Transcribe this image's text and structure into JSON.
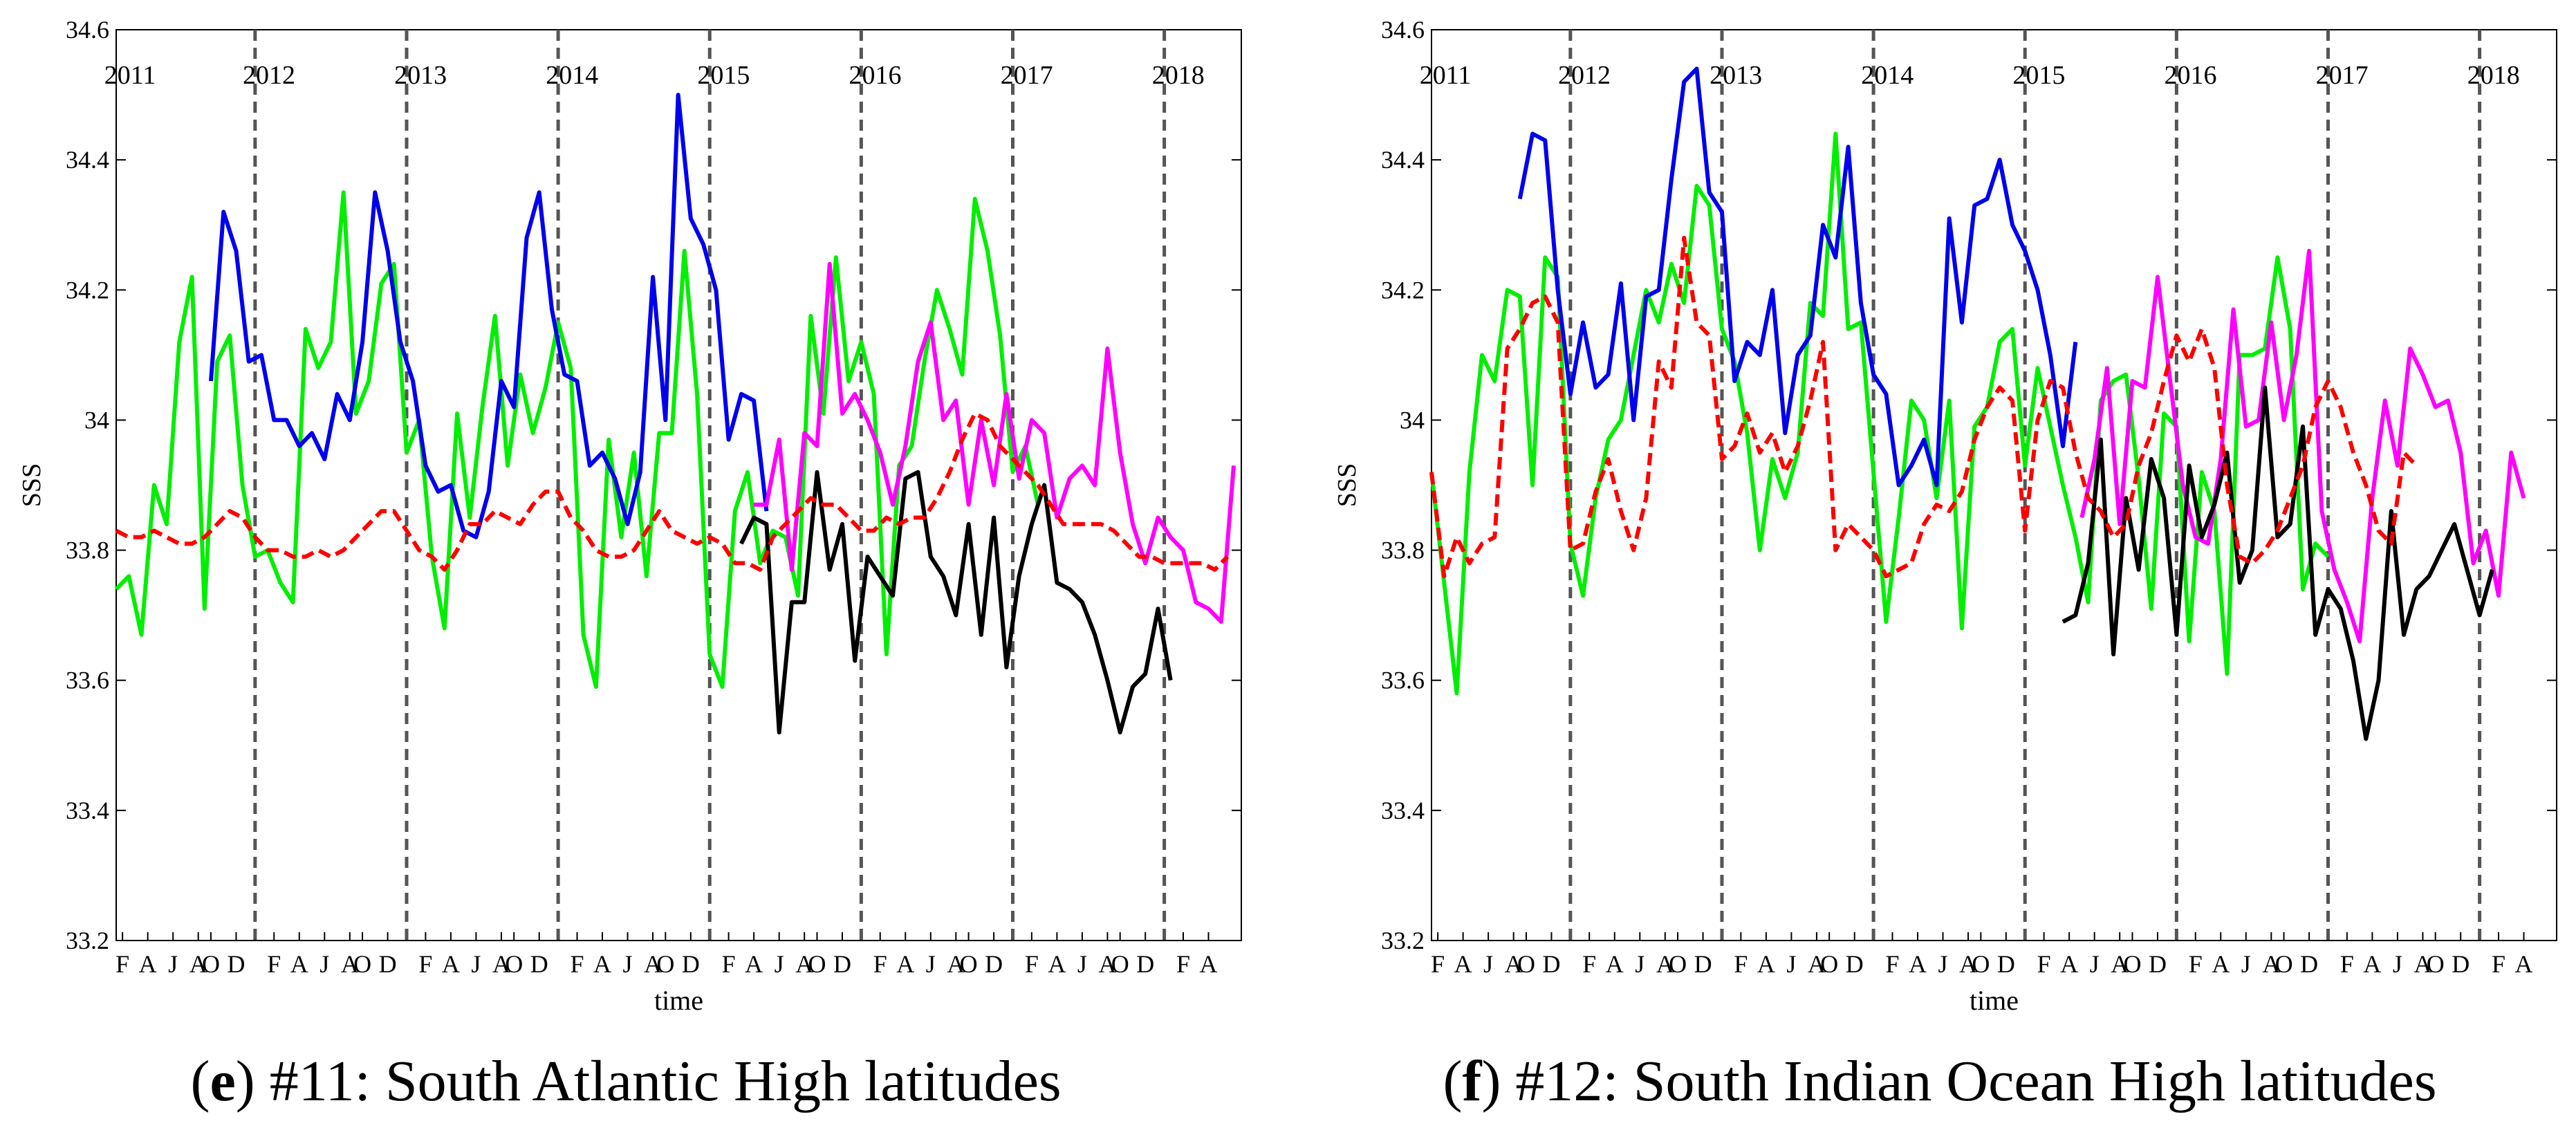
{
  "chart_data": [
    {
      "type": "line",
      "panel_letter": "e",
      "caption": "#11: South Atlantic High latitudes",
      "xlabel": "time",
      "ylabel": "SSS",
      "ylim": [
        33.2,
        34.6
      ],
      "yticks": [
        "33.2",
        "33.4",
        "33.6",
        "33.8",
        "34",
        "34.2",
        "34.4",
        "34.6"
      ],
      "xlim": [
        0.5,
        89.6
      ],
      "month_ticks": [
        {
          "m": 1,
          "label": "F"
        },
        {
          "m": 3,
          "label": "A"
        },
        {
          "m": 5,
          "label": "J"
        },
        {
          "m": 7,
          "label": "A"
        },
        {
          "m": 8,
          "label": "O"
        },
        {
          "m": 10,
          "label": "D"
        },
        {
          "m": 13,
          "label": "F"
        },
        {
          "m": 15,
          "label": "A"
        },
        {
          "m": 17,
          "label": "J"
        },
        {
          "m": 19,
          "label": "A"
        },
        {
          "m": 20,
          "label": "O"
        },
        {
          "m": 22,
          "label": "D"
        },
        {
          "m": 25,
          "label": "F"
        },
        {
          "m": 27,
          "label": "A"
        },
        {
          "m": 29,
          "label": "J"
        },
        {
          "m": 31,
          "label": "A"
        },
        {
          "m": 32,
          "label": "O"
        },
        {
          "m": 34,
          "label": "D"
        },
        {
          "m": 37,
          "label": "F"
        },
        {
          "m": 39,
          "label": "A"
        },
        {
          "m": 41,
          "label": "J"
        },
        {
          "m": 43,
          "label": "A"
        },
        {
          "m": 44,
          "label": "O"
        },
        {
          "m": 46,
          "label": "D"
        },
        {
          "m": 49,
          "label": "F"
        },
        {
          "m": 51,
          "label": "A"
        },
        {
          "m": 53,
          "label": "J"
        },
        {
          "m": 55,
          "label": "A"
        },
        {
          "m": 56,
          "label": "O"
        },
        {
          "m": 58,
          "label": "D"
        },
        {
          "m": 61,
          "label": "F"
        },
        {
          "m": 63,
          "label": "A"
        },
        {
          "m": 65,
          "label": "J"
        },
        {
          "m": 67,
          "label": "A"
        },
        {
          "m": 68,
          "label": "O"
        },
        {
          "m": 70,
          "label": "D"
        },
        {
          "m": 73,
          "label": "F"
        },
        {
          "m": 75,
          "label": "A"
        },
        {
          "m": 77,
          "label": "J"
        },
        {
          "m": 79,
          "label": "A"
        },
        {
          "m": 80,
          "label": "O"
        },
        {
          "m": 82,
          "label": "D"
        },
        {
          "m": 85,
          "label": "F"
        },
        {
          "m": 87,
          "label": "A"
        }
      ],
      "year_dividers": [
        11.5,
        23.5,
        35.5,
        47.5,
        59.5,
        71.5,
        83.5
      ],
      "year_labels": [
        {
          "m": 1.6,
          "label": "2011"
        },
        {
          "m": 12.6,
          "label": "2012"
        },
        {
          "m": 24.6,
          "label": "2013"
        },
        {
          "m": 36.6,
          "label": "2014"
        },
        {
          "m": 48.6,
          "label": "2015"
        },
        {
          "m": 60.6,
          "label": "2016"
        },
        {
          "m": 72.6,
          "label": "2017"
        },
        {
          "m": 84.6,
          "label": "2018"
        }
      ],
      "series": [
        {
          "name": "green",
          "color": "#00ee00",
          "dashed": false,
          "start": 0.5,
          "values": [
            33.74,
            33.76,
            33.67,
            33.9,
            33.84,
            34.12,
            34.22,
            33.71,
            34.09,
            34.13,
            33.9,
            33.79,
            33.8,
            33.75,
            33.72,
            34.14,
            34.08,
            34.12,
            34.35,
            34.01,
            34.06,
            34.21,
            34.24,
            33.95,
            34.0,
            33.79,
            33.68,
            34.01,
            33.85,
            34.02,
            34.16,
            33.93,
            34.07,
            33.98,
            34.05,
            34.15,
            34.08,
            33.67,
            33.59,
            33.97,
            33.82,
            33.95,
            33.76,
            33.98,
            33.98,
            34.26,
            34.04,
            33.64,
            33.59,
            33.86,
            33.92,
            33.78,
            33.83,
            33.82,
            33.73,
            34.16,
            34.01,
            34.25,
            34.06,
            34.12,
            34.04,
            33.64,
            33.93,
            33.96,
            34.09,
            34.2,
            34.14,
            34.07,
            34.34,
            34.26,
            34.13,
            33.92,
            33.96,
            33.87
          ]
        },
        {
          "name": "blue",
          "color": "#0000ee",
          "dashed": false,
          "start": 8,
          "values": [
            34.06,
            34.32,
            34.26,
            34.09,
            34.1,
            34.0,
            34.0,
            33.96,
            33.98,
            33.94,
            34.04,
            34.0,
            34.12,
            34.35,
            34.26,
            34.12,
            34.06,
            33.93,
            33.89,
            33.9,
            33.83,
            33.82,
            33.89,
            34.06,
            34.02,
            34.28,
            34.35,
            34.17,
            34.07,
            34.06,
            33.93,
            33.95,
            33.91,
            33.84,
            33.92,
            34.22,
            34.0,
            34.5,
            34.31,
            34.27,
            34.2,
            33.97,
            34.04,
            34.03,
            33.86
          ]
        },
        {
          "name": "magenta",
          "color": "#ff00ff",
          "dashed": false,
          "start": 51,
          "values": [
            33.87,
            33.87,
            33.97,
            33.77,
            33.98,
            33.96,
            34.24,
            34.01,
            34.04,
            34.0,
            33.95,
            33.87,
            33.96,
            34.09,
            34.15,
            34.0,
            34.03,
            33.87,
            34.0,
            33.9,
            34.04,
            33.91,
            34.0,
            33.98,
            33.85,
            33.91,
            33.93,
            33.9,
            34.11,
            33.95,
            33.84,
            33.78,
            33.85,
            33.82,
            33.8,
            33.72,
            33.71,
            33.69,
            33.93
          ]
        },
        {
          "name": "black",
          "color": "#000000",
          "dashed": false,
          "start": 50,
          "values": [
            33.81,
            33.85,
            33.84,
            33.52,
            33.72,
            33.72,
            33.92,
            33.77,
            33.84,
            33.63,
            33.79,
            33.76,
            33.73,
            33.91,
            33.92,
            33.79,
            33.76,
            33.7,
            33.84,
            33.67,
            33.85,
            33.62,
            33.76,
            33.84,
            33.9,
            33.75,
            33.74,
            33.72,
            33.67,
            33.6,
            33.52,
            33.59,
            33.61,
            33.71,
            33.6
          ]
        },
        {
          "name": "red-dashed",
          "color": "#ff0000",
          "dashed": true,
          "start": 0.5,
          "values": [
            33.83,
            33.82,
            33.82,
            33.83,
            33.82,
            33.81,
            33.81,
            33.82,
            33.84,
            33.86,
            33.85,
            33.82,
            33.8,
            33.8,
            33.79,
            33.79,
            33.8,
            33.79,
            33.8,
            33.82,
            33.84,
            33.86,
            33.86,
            33.83,
            33.8,
            33.79,
            33.77,
            33.8,
            33.84,
            33.84,
            33.86,
            33.85,
            33.84,
            33.87,
            33.89,
            33.89,
            33.85,
            33.83,
            33.8,
            33.79,
            33.79,
            33.8,
            33.83,
            33.86,
            33.83,
            33.82,
            33.81,
            33.82,
            33.81,
            33.78,
            33.78,
            33.77,
            33.82,
            33.84,
            33.86,
            33.88,
            33.87,
            33.87,
            33.85,
            33.83,
            33.83,
            33.85,
            33.84,
            33.85,
            33.85,
            33.88,
            33.92,
            33.97,
            34.01,
            34.0,
            33.96,
            33.94,
            33.92,
            33.9,
            33.87,
            33.84,
            33.84,
            33.84,
            33.84,
            33.83,
            33.81,
            33.79,
            33.79,
            33.78,
            33.78,
            33.78,
            33.78,
            33.77,
            33.79
          ]
        }
      ]
    },
    {
      "type": "line",
      "panel_letter": "f",
      "caption": "#12: South Indian Ocean High latitudes",
      "xlabel": "time",
      "ylabel": "SSS",
      "ylim": [
        33.2,
        34.6
      ],
      "yticks": [
        "33.2",
        "33.4",
        "33.6",
        "33.8",
        "34",
        "34.2",
        "34.4",
        "34.6"
      ],
      "xlim": [
        0.5,
        89.6
      ],
      "month_ticks": [
        {
          "m": 1,
          "label": "F"
        },
        {
          "m": 3,
          "label": "A"
        },
        {
          "m": 5,
          "label": "J"
        },
        {
          "m": 7,
          "label": "A"
        },
        {
          "m": 8,
          "label": "O"
        },
        {
          "m": 10,
          "label": "D"
        },
        {
          "m": 13,
          "label": "F"
        },
        {
          "m": 15,
          "label": "A"
        },
        {
          "m": 17,
          "label": "J"
        },
        {
          "m": 19,
          "label": "A"
        },
        {
          "m": 20,
          "label": "O"
        },
        {
          "m": 22,
          "label": "D"
        },
        {
          "m": 25,
          "label": "F"
        },
        {
          "m": 27,
          "label": "A"
        },
        {
          "m": 29,
          "label": "J"
        },
        {
          "m": 31,
          "label": "A"
        },
        {
          "m": 32,
          "label": "O"
        },
        {
          "m": 34,
          "label": "D"
        },
        {
          "m": 37,
          "label": "F"
        },
        {
          "m": 39,
          "label": "A"
        },
        {
          "m": 41,
          "label": "J"
        },
        {
          "m": 43,
          "label": "A"
        },
        {
          "m": 44,
          "label": "O"
        },
        {
          "m": 46,
          "label": "D"
        },
        {
          "m": 49,
          "label": "F"
        },
        {
          "m": 51,
          "label": "A"
        },
        {
          "m": 53,
          "label": "J"
        },
        {
          "m": 55,
          "label": "A"
        },
        {
          "m": 56,
          "label": "O"
        },
        {
          "m": 58,
          "label": "D"
        },
        {
          "m": 61,
          "label": "F"
        },
        {
          "m": 63,
          "label": "A"
        },
        {
          "m": 65,
          "label": "J"
        },
        {
          "m": 67,
          "label": "A"
        },
        {
          "m": 68,
          "label": "O"
        },
        {
          "m": 70,
          "label": "D"
        },
        {
          "m": 73,
          "label": "F"
        },
        {
          "m": 75,
          "label": "A"
        },
        {
          "m": 77,
          "label": "J"
        },
        {
          "m": 79,
          "label": "A"
        },
        {
          "m": 80,
          "label": "O"
        },
        {
          "m": 82,
          "label": "D"
        },
        {
          "m": 85,
          "label": "F"
        },
        {
          "m": 87,
          "label": "A"
        }
      ],
      "year_dividers": [
        11.5,
        23.5,
        35.5,
        47.5,
        59.5,
        71.5,
        83.5
      ],
      "year_labels": [
        {
          "m": 1.6,
          "label": "2011"
        },
        {
          "m": 12.6,
          "label": "2012"
        },
        {
          "m": 24.6,
          "label": "2013"
        },
        {
          "m": 36.6,
          "label": "2014"
        },
        {
          "m": 48.6,
          "label": "2015"
        },
        {
          "m": 60.6,
          "label": "2016"
        },
        {
          "m": 72.6,
          "label": "2017"
        },
        {
          "m": 84.6,
          "label": "2018"
        }
      ],
      "series": [
        {
          "name": "green",
          "color": "#00ee00",
          "dashed": false,
          "start": 0.5,
          "values": [
            33.92,
            33.75,
            33.58,
            33.92,
            34.1,
            34.06,
            34.2,
            34.19,
            33.9,
            34.25,
            34.22,
            33.81,
            33.73,
            33.88,
            33.97,
            34.0,
            34.1,
            34.2,
            34.15,
            34.24,
            34.18,
            34.36,
            34.33,
            34.14,
            34.09,
            33.98,
            33.8,
            33.94,
            33.88,
            33.95,
            34.18,
            34.16,
            34.44,
            34.14,
            34.15,
            33.92,
            33.69,
            33.85,
            34.03,
            34.0,
            33.88,
            34.03,
            33.68,
            33.99,
            34.02,
            34.12,
            34.14,
            33.93,
            34.08,
            33.99,
            33.9,
            33.82,
            33.72,
            34.03,
            34.06,
            34.07,
            33.91,
            33.71,
            34.01,
            33.99,
            33.66,
            33.92,
            33.86,
            33.61,
            34.1,
            34.1,
            34.11,
            34.25,
            34.14,
            33.74,
            33.81,
            33.79
          ]
        },
        {
          "name": "blue",
          "color": "#0000ee",
          "dashed": false,
          "start": 7.5,
          "values": [
            34.34,
            34.44,
            34.43,
            34.2,
            34.04,
            34.15,
            34.05,
            34.07,
            34.21,
            34.0,
            34.19,
            34.2,
            34.37,
            34.52,
            34.54,
            34.35,
            34.32,
            34.06,
            34.12,
            34.1,
            34.2,
            33.98,
            34.1,
            34.13,
            34.3,
            34.25,
            34.42,
            34.18,
            34.07,
            34.04,
            33.9,
            33.93,
            33.97,
            33.9,
            34.31,
            34.15,
            34.33,
            34.34,
            34.4,
            34.3,
            34.26,
            34.2,
            34.1,
            33.96,
            34.12
          ]
        },
        {
          "name": "magenta",
          "color": "#ff00ff",
          "dashed": false,
          "start": 52,
          "values": [
            33.85,
            33.94,
            34.08,
            33.84,
            34.06,
            34.05,
            34.22,
            34.06,
            33.9,
            33.82,
            33.81,
            33.94,
            34.17,
            33.99,
            34.0,
            34.15,
            34.0,
            34.1,
            34.26,
            33.86,
            33.77,
            33.72,
            33.66,
            33.88,
            34.03,
            33.93,
            34.11,
            34.07,
            34.02,
            34.03,
            33.95,
            33.78,
            33.83,
            33.73,
            33.95,
            33.88
          ]
        },
        {
          "name": "black",
          "color": "#000000",
          "dashed": false,
          "start": 50.5,
          "values": [
            33.69,
            33.7,
            33.78,
            33.97,
            33.64,
            33.88,
            33.77,
            33.94,
            33.88,
            33.67,
            33.93,
            33.82,
            33.87,
            33.95,
            33.75,
            33.8,
            34.05,
            33.82,
            33.84,
            33.99,
            33.67,
            33.74,
            33.71,
            33.63,
            33.51,
            33.6,
            33.86,
            33.67,
            33.74,
            33.76,
            33.8,
            33.84,
            33.77,
            33.7,
            33.77
          ]
        },
        {
          "name": "red-dashed",
          "color": "#ff0000",
          "dashed": true,
          "start": 0.5,
          "values": [
            33.92,
            33.76,
            33.82,
            33.78,
            33.81,
            33.82,
            34.11,
            34.14,
            34.18,
            34.19,
            34.15,
            33.8,
            33.81,
            33.89,
            33.94,
            33.86,
            33.8,
            33.88,
            34.09,
            34.05,
            34.28,
            34.15,
            34.13,
            33.94,
            33.96,
            34.01,
            33.95,
            33.98,
            33.92,
            33.96,
            34.03,
            34.12,
            33.8,
            33.84,
            33.82,
            33.8,
            33.76,
            33.77,
            33.78,
            33.84,
            33.87,
            33.86,
            33.89,
            33.97,
            34.02,
            34.05,
            34.03,
            33.83,
            34.0,
            34.06,
            34.05,
            33.95,
            33.88,
            33.86,
            33.82,
            33.84,
            33.93,
            33.98,
            34.06,
            34.13,
            34.09,
            34.14,
            34.08,
            33.9,
            33.79,
            33.78,
            33.8,
            33.83,
            33.88,
            33.93,
            34.02,
            34.06,
            34.02,
            33.95,
            33.9,
            33.83,
            33.81,
            33.95,
            33.93
          ]
        }
      ]
    }
  ]
}
